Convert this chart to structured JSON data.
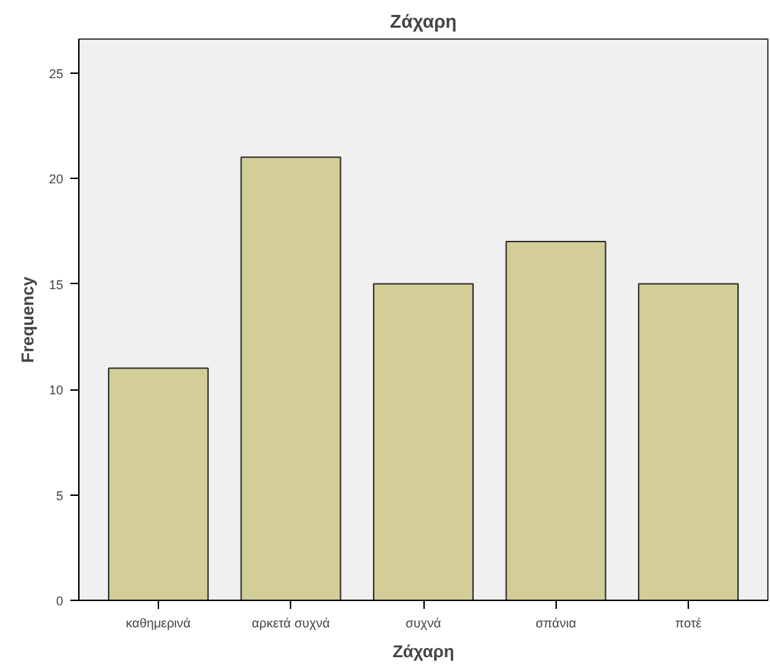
{
  "chart_data": {
    "type": "bar",
    "title": "Ζάχαρη",
    "xlabel": "Ζάχαρη",
    "ylabel": "Frequency",
    "categories": [
      "καθημερινά",
      "αρκετά συχνά",
      "συχνά",
      "σπάνια",
      "ποτέ"
    ],
    "values": [
      11,
      21,
      15,
      17,
      15
    ],
    "color": "#d3ce98",
    "ylim": [
      0,
      26.6
    ],
    "yticks": [
      0,
      5,
      10,
      15,
      20,
      25
    ],
    "grid": false
  }
}
